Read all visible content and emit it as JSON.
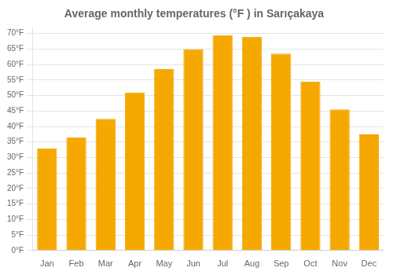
{
  "chart_data": {
    "type": "bar",
    "title": "Average monthly temperatures (°F ) in Sarıçakaya",
    "categories": [
      "Jan",
      "Feb",
      "Mar",
      "Apr",
      "May",
      "Jun",
      "Jul",
      "Aug",
      "Sep",
      "Oct",
      "Nov",
      "Dec"
    ],
    "values": [
      33.0,
      36.5,
      42.5,
      51.0,
      58.5,
      65.0,
      69.5,
      69.0,
      63.5,
      54.5,
      45.5,
      37.5
    ],
    "color": "#F5A800",
    "ylim": [
      0,
      72
    ],
    "yticks": [
      {
        "value": 0,
        "label": "0°F"
      },
      {
        "value": 5,
        "label": "5°F"
      },
      {
        "value": 10,
        "label": "10°F"
      },
      {
        "value": 15,
        "label": "15°F"
      },
      {
        "value": 20,
        "label": "20°F"
      },
      {
        "value": 25,
        "label": "25°F"
      },
      {
        "value": 30,
        "label": "30°F"
      },
      {
        "value": 35,
        "label": "35°F"
      },
      {
        "value": 40,
        "label": "40°F"
      },
      {
        "value": 45,
        "label": "45°F"
      },
      {
        "value": 50,
        "label": "50°F"
      },
      {
        "value": 55,
        "label": "55°F"
      },
      {
        "value": 60,
        "label": "60°F"
      },
      {
        "value": 65,
        "label": "65°F"
      },
      {
        "value": 70,
        "label": "70°F"
      }
    ],
    "grid": true
  }
}
